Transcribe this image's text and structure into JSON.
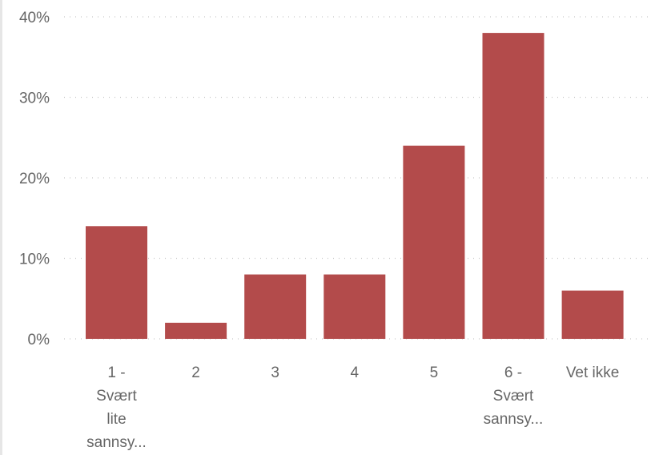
{
  "chart_data": {
    "type": "bar",
    "categories": [
      [
        "1 -",
        "Svært",
        "lite",
        "sannsy..."
      ],
      [
        "2"
      ],
      [
        "3"
      ],
      [
        "4"
      ],
      [
        "5"
      ],
      [
        "6 -",
        "Svært",
        "sannsy..."
      ],
      [
        "Vet ikke"
      ]
    ],
    "values": [
      14,
      2,
      8,
      8,
      24,
      38,
      6
    ],
    "ylim": [
      0,
      40
    ],
    "yticks": [
      0,
      10,
      20,
      30,
      40
    ],
    "ytick_labels": [
      "0%",
      "10%",
      "20%",
      "30%",
      "40%"
    ],
    "value_unit": "%",
    "grid": true,
    "bar_color": "#b34b4b",
    "title": "",
    "xlabel": "",
    "ylabel": ""
  }
}
